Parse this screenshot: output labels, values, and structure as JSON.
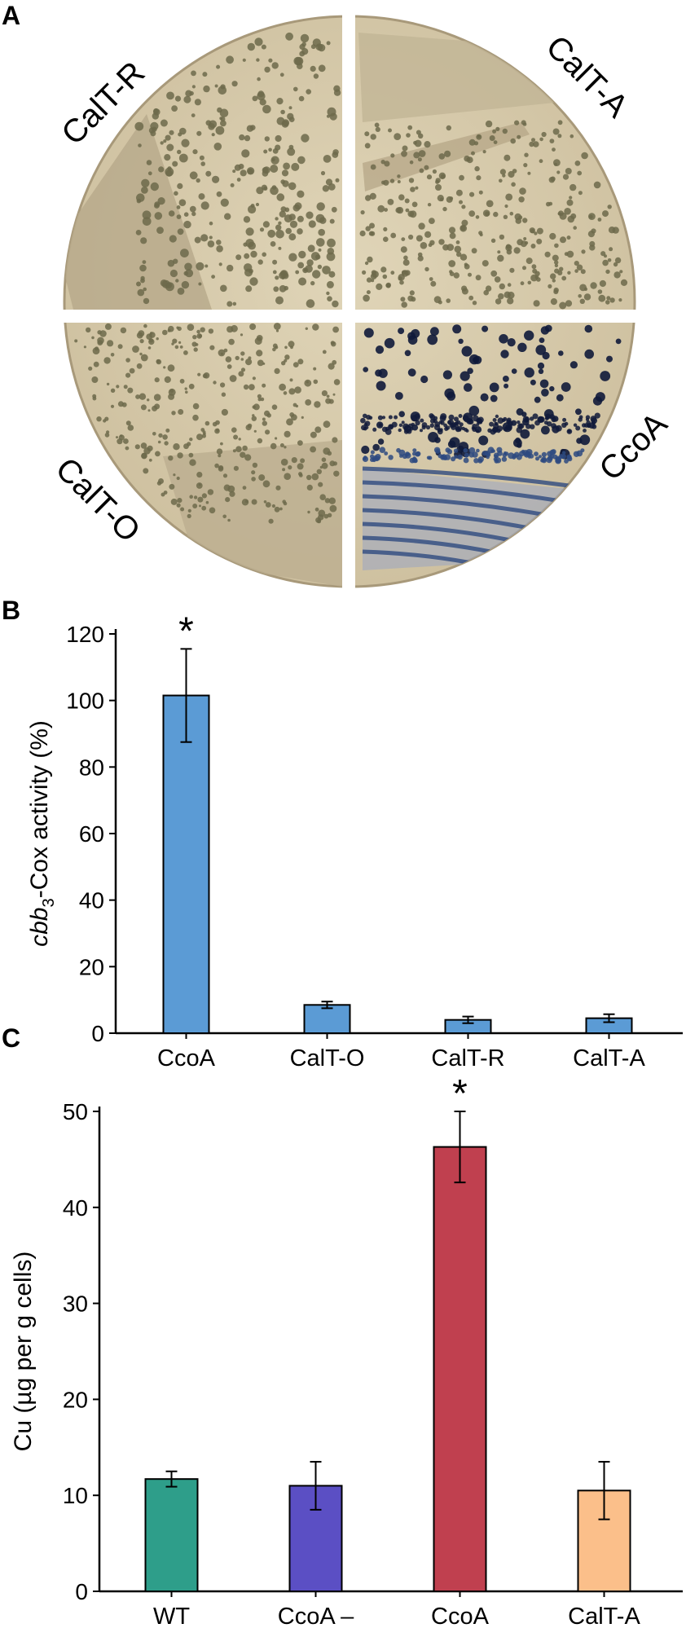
{
  "panel_a": {
    "letter": "A",
    "quadrant_labels": {
      "top_left": "CalT-R",
      "top_right": "CalT-A",
      "bottom_left": "CalT-O",
      "bottom_right": "CcoA"
    },
    "colors": {
      "plate": "#d8ccae",
      "plate_edge": "#a8997a",
      "colony_tan": "#6d6a4b",
      "colony_blue": "#101a3a",
      "streak_blue": "#2e4a80"
    }
  },
  "chart_data": [
    {
      "type": "bar",
      "panel": "B",
      "categories": [
        "CcoA",
        "CalT-O",
        "CalT-R",
        "CalT-A"
      ],
      "values": [
        101.5,
        8.5,
        4,
        4.5
      ],
      "errors": [
        14,
        1,
        1,
        1.2
      ],
      "significance": [
        "*",
        "",
        "",
        ""
      ],
      "ylabel_italic": "cbb",
      "ylabel_subscript": "3",
      "ylabel_rest": "-Cox activity (%)",
      "ylim": [
        0,
        120
      ],
      "yticks": [
        0,
        20,
        40,
        60,
        80,
        100,
        120
      ],
      "bar_color": "#5b9bd5",
      "grid": false,
      "legend": false
    },
    {
      "type": "bar",
      "panel": "C",
      "categories": [
        "WT",
        "CcoA –",
        "CcoA",
        "CalT-A"
      ],
      "values": [
        11.7,
        11,
        46.3,
        10.5
      ],
      "errors": [
        0.8,
        2.5,
        3.7,
        3
      ],
      "significance": [
        "",
        "",
        "*",
        ""
      ],
      "ylabel": "Cu (µg per g cells)",
      "ylim": [
        0,
        50
      ],
      "yticks": [
        0,
        10,
        20,
        30,
        40,
        50
      ],
      "bar_colors": [
        "#2e9e8a",
        "#5b4fc4",
        "#c0404f",
        "#fbbf8a"
      ],
      "grid": false,
      "legend": false
    }
  ]
}
